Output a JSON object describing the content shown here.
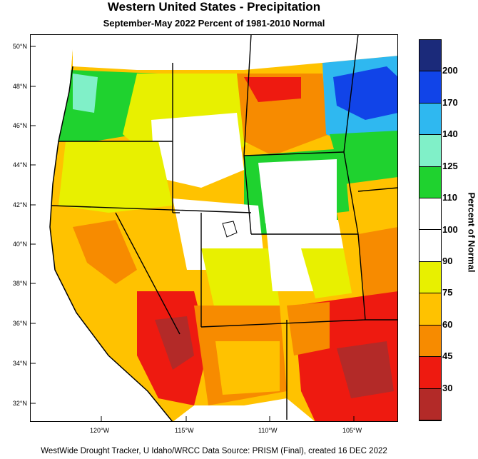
{
  "title": "Western United States - Precipitation",
  "subtitle": "September-May 2022  Percent of 1981-2010 Normal",
  "footer": "WestWide Drought Tracker, U Idaho/WRCC Data Source: PRISM (Final), created 16 DEC 2022",
  "legend": {
    "title": "Percent of Normal",
    "bins": [
      {
        "label": "200",
        "color": "#1b2a7a"
      },
      {
        "label": "170",
        "color": "#1144e8"
      },
      {
        "label": "140",
        "color": "#2fb8f0"
      },
      {
        "label": "125",
        "color": "#80f0c8"
      },
      {
        "label": "110",
        "color": "#1fd22f"
      },
      {
        "label": "100",
        "color": "#ffffff"
      },
      {
        "label": "90",
        "color": "#ffffff"
      },
      {
        "label": "75",
        "color": "#e8f000"
      },
      {
        "label": "60",
        "color": "#ffc200"
      },
      {
        "label": "45",
        "color": "#f78b00"
      },
      {
        "label": "30",
        "color": "#ee1a10"
      },
      {
        "label": "",
        "color": "#b32a28"
      }
    ]
  },
  "lat_labels": [
    "50°N",
    "48°N",
    "46°N",
    "44°N",
    "42°N",
    "40°N",
    "38°N",
    "36°N",
    "34°N",
    "32°N"
  ],
  "lon_labels": [
    "120°W",
    "115°W",
    "110°W",
    "105°W"
  ]
}
